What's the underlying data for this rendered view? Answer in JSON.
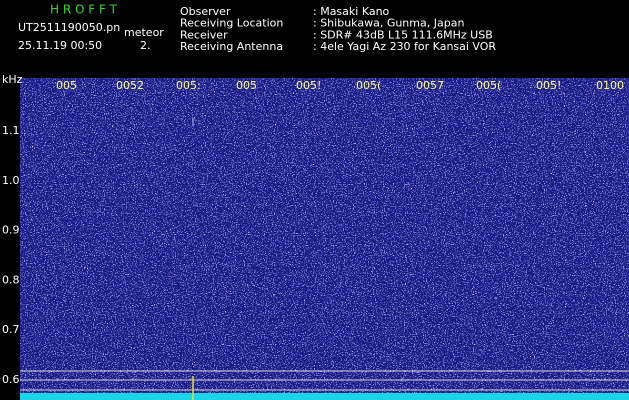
{
  "header": {
    "app_name": "H R O F F T",
    "file_name": "UT2511190050.pn",
    "tag": "meteor",
    "timestamp": "25.11.19 00:50",
    "mode": "2.",
    "info": [
      {
        "label": "Observer",
        "value": ": Masaki Kano"
      },
      {
        "label": "Receiving Location",
        "value": ": Shibukawa, Gunma, Japan"
      },
      {
        "label": "Receiver",
        "value": ": SDR# 43dB L15 111.6MHz USB"
      },
      {
        "label": "Receiving Antenna",
        "value": ": 4ele Yagi Az 230 for Kansai VOR"
      }
    ]
  },
  "spectrogram": {
    "y_unit": "kHz",
    "y_labels": [
      "1.1",
      "1.0",
      "0.9",
      "0.8",
      "0.7",
      "0.6"
    ],
    "x_labels": [
      "005",
      "0052",
      "005:",
      "005",
      "005!",
      "005(",
      "0057",
      "005(",
      "005!",
      "0100"
    ]
  }
}
